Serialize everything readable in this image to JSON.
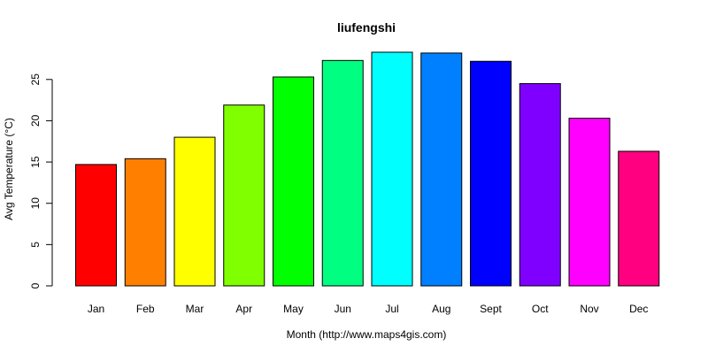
{
  "chart_data": {
    "type": "bar",
    "title": "liufengshi",
    "xlabel": "Month (http://www.maps4gis.com)",
    "ylabel": "Avg Temperature (°C)",
    "categories": [
      "Jan",
      "Feb",
      "Mar",
      "Apr",
      "May",
      "Jun",
      "Jul",
      "Aug",
      "Sept",
      "Oct",
      "Nov",
      "Dec"
    ],
    "values": [
      14.7,
      15.4,
      18.0,
      21.9,
      25.3,
      27.3,
      28.3,
      28.2,
      27.2,
      24.5,
      20.3,
      16.3
    ],
    "colors": [
      "#FF0000",
      "#FF8000",
      "#FFFF00",
      "#80FF00",
      "#00FF00",
      "#00FF80",
      "#00FFFF",
      "#0080FF",
      "#0000FF",
      "#8000FF",
      "#FF00FF",
      "#FF0080"
    ],
    "ylim": [
      0,
      28.3
    ],
    "yticks": [
      0,
      5,
      10,
      15,
      20,
      25
    ],
    "grid": false,
    "legend": "none"
  }
}
